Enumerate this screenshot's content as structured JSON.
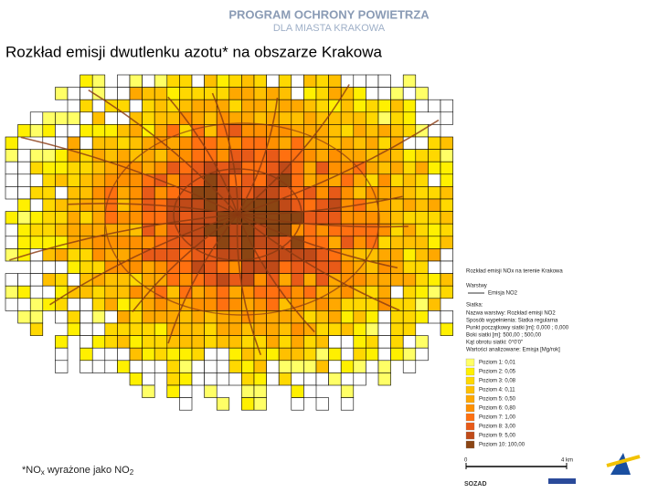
{
  "header": {
    "program": "PROGRAM OCHRONY POWIETRZA",
    "city": "DLA MIASTA KRAKOWA"
  },
  "title": "Rozkład emisji dwutlenku azotu* na obszarze Krakowa",
  "legend": {
    "heading": "Rozkład emisji NOx na terenie Krakowa",
    "layers_label": "Warstwy",
    "layer": "Emisja NO2",
    "grid_label": "Siatka:",
    "info": [
      "Nazwa warstwy: Rozkład emisji NO2",
      "Sposób wypełnienia: Siatka regularna",
      "Punkt początkowy siatki [m]: 0,000 ; 0,000",
      "Boki siatki [m]: 500,00 ; 500,00",
      "Kąt obrotu siatki: 0°0'0\"",
      "Wartości analizowane: Emisja [Mg/rok]"
    ],
    "levels": [
      {
        "label": "Poziom 1: 0,01",
        "color": "#ffff66"
      },
      {
        "label": "Poziom 2: 0,05",
        "color": "#fff000"
      },
      {
        "label": "Poziom 3: 0,08",
        "color": "#ffd800"
      },
      {
        "label": "Poziom 4: 0,11",
        "color": "#ffc000"
      },
      {
        "label": "Poziom 5: 0,50",
        "color": "#ffa800"
      },
      {
        "label": "Poziom 6: 0,80",
        "color": "#ff9000"
      },
      {
        "label": "Poziom 7: 1,00",
        "color": "#ff7010"
      },
      {
        "label": "Poziom 8: 3,00",
        "color": "#e85a18"
      },
      {
        "label": "Poziom 9: 5,00",
        "color": "#c04a18"
      },
      {
        "label": "Poziom 10: 100,00",
        "color": "#8b4513"
      }
    ],
    "scale_start": "0",
    "scale_end": "4 km"
  },
  "footnote": {
    "prefix": "*NO",
    "sub1": "x",
    "middle": " wyrażone jako NO",
    "sub2": "2"
  },
  "logo": "SOZAD"
}
